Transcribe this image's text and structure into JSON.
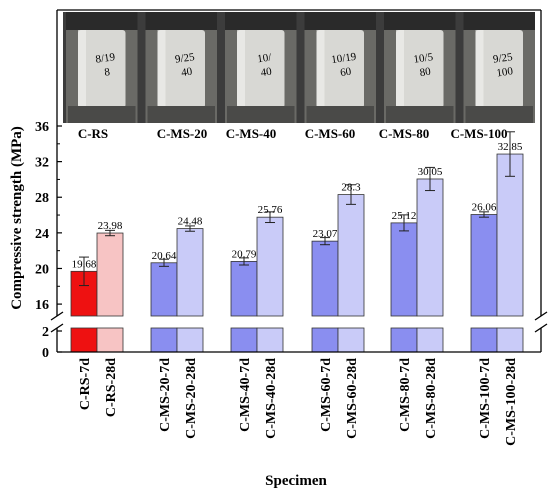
{
  "photo_labels": [
    "C-RS",
    "C-MS-20",
    "C-MS-40",
    "C-MS-60",
    "C-MS-80",
    "C-MS-100"
  ],
  "photo_writing": [
    "8/19\n8",
    "9/25\n40",
    "10/\n40",
    "10/19\n60",
    "10/5\n80",
    "9/25\n100"
  ],
  "colors": {
    "rs_7d": "#ee1111",
    "rs_28d": "#f7c4c4",
    "ms_7d": "#8a8ef0",
    "ms_28d": "#c9cbf8",
    "photo_bg": "#3c3c3c",
    "plate": "#2a2a2a",
    "specimen": "#d8d8d4"
  },
  "chart_data": {
    "type": "bar",
    "xlabel": "Specimen",
    "ylabel": "Compressive strength (MPa)",
    "axis_break": {
      "lower": [
        0,
        2
      ],
      "upper": [
        15,
        36
      ]
    },
    "yticks_lower": [
      0,
      2
    ],
    "yticks_upper": [
      16,
      20,
      24,
      28,
      32,
      36
    ],
    "categories": [
      "C-RS-7d",
      "C-RS-28d",
      "C-MS-20-7d",
      "C-MS-20-28d",
      "C-MS-40-7d",
      "C-MS-40-28d",
      "C-MS-60-7d",
      "C-MS-60-28d",
      "C-MS-80-7d",
      "C-MS-80-28d",
      "C-MS-100-7d",
      "C-MS-100-28d"
    ],
    "values": [
      19.68,
      23.98,
      20.64,
      24.48,
      20.79,
      25.76,
      23.07,
      28.3,
      25.12,
      30.05,
      26.06,
      32.85
    ],
    "value_labels": [
      "19.68",
      "23.98",
      "20.64",
      "24.48",
      "20.79",
      "25.76",
      "23.07",
      "28.3",
      "25.12",
      "30.05",
      "26.06",
      "32.85"
    ],
    "errors": [
      1.6,
      0.3,
      0.4,
      0.3,
      0.4,
      0.6,
      0.4,
      1.1,
      0.9,
      1.3,
      0.3,
      2.5
    ],
    "color_keys": [
      "rs_7d",
      "rs_28d",
      "ms_7d",
      "ms_28d",
      "ms_7d",
      "ms_28d",
      "ms_7d",
      "ms_28d",
      "ms_7d",
      "ms_28d",
      "ms_7d",
      "ms_28d"
    ]
  }
}
